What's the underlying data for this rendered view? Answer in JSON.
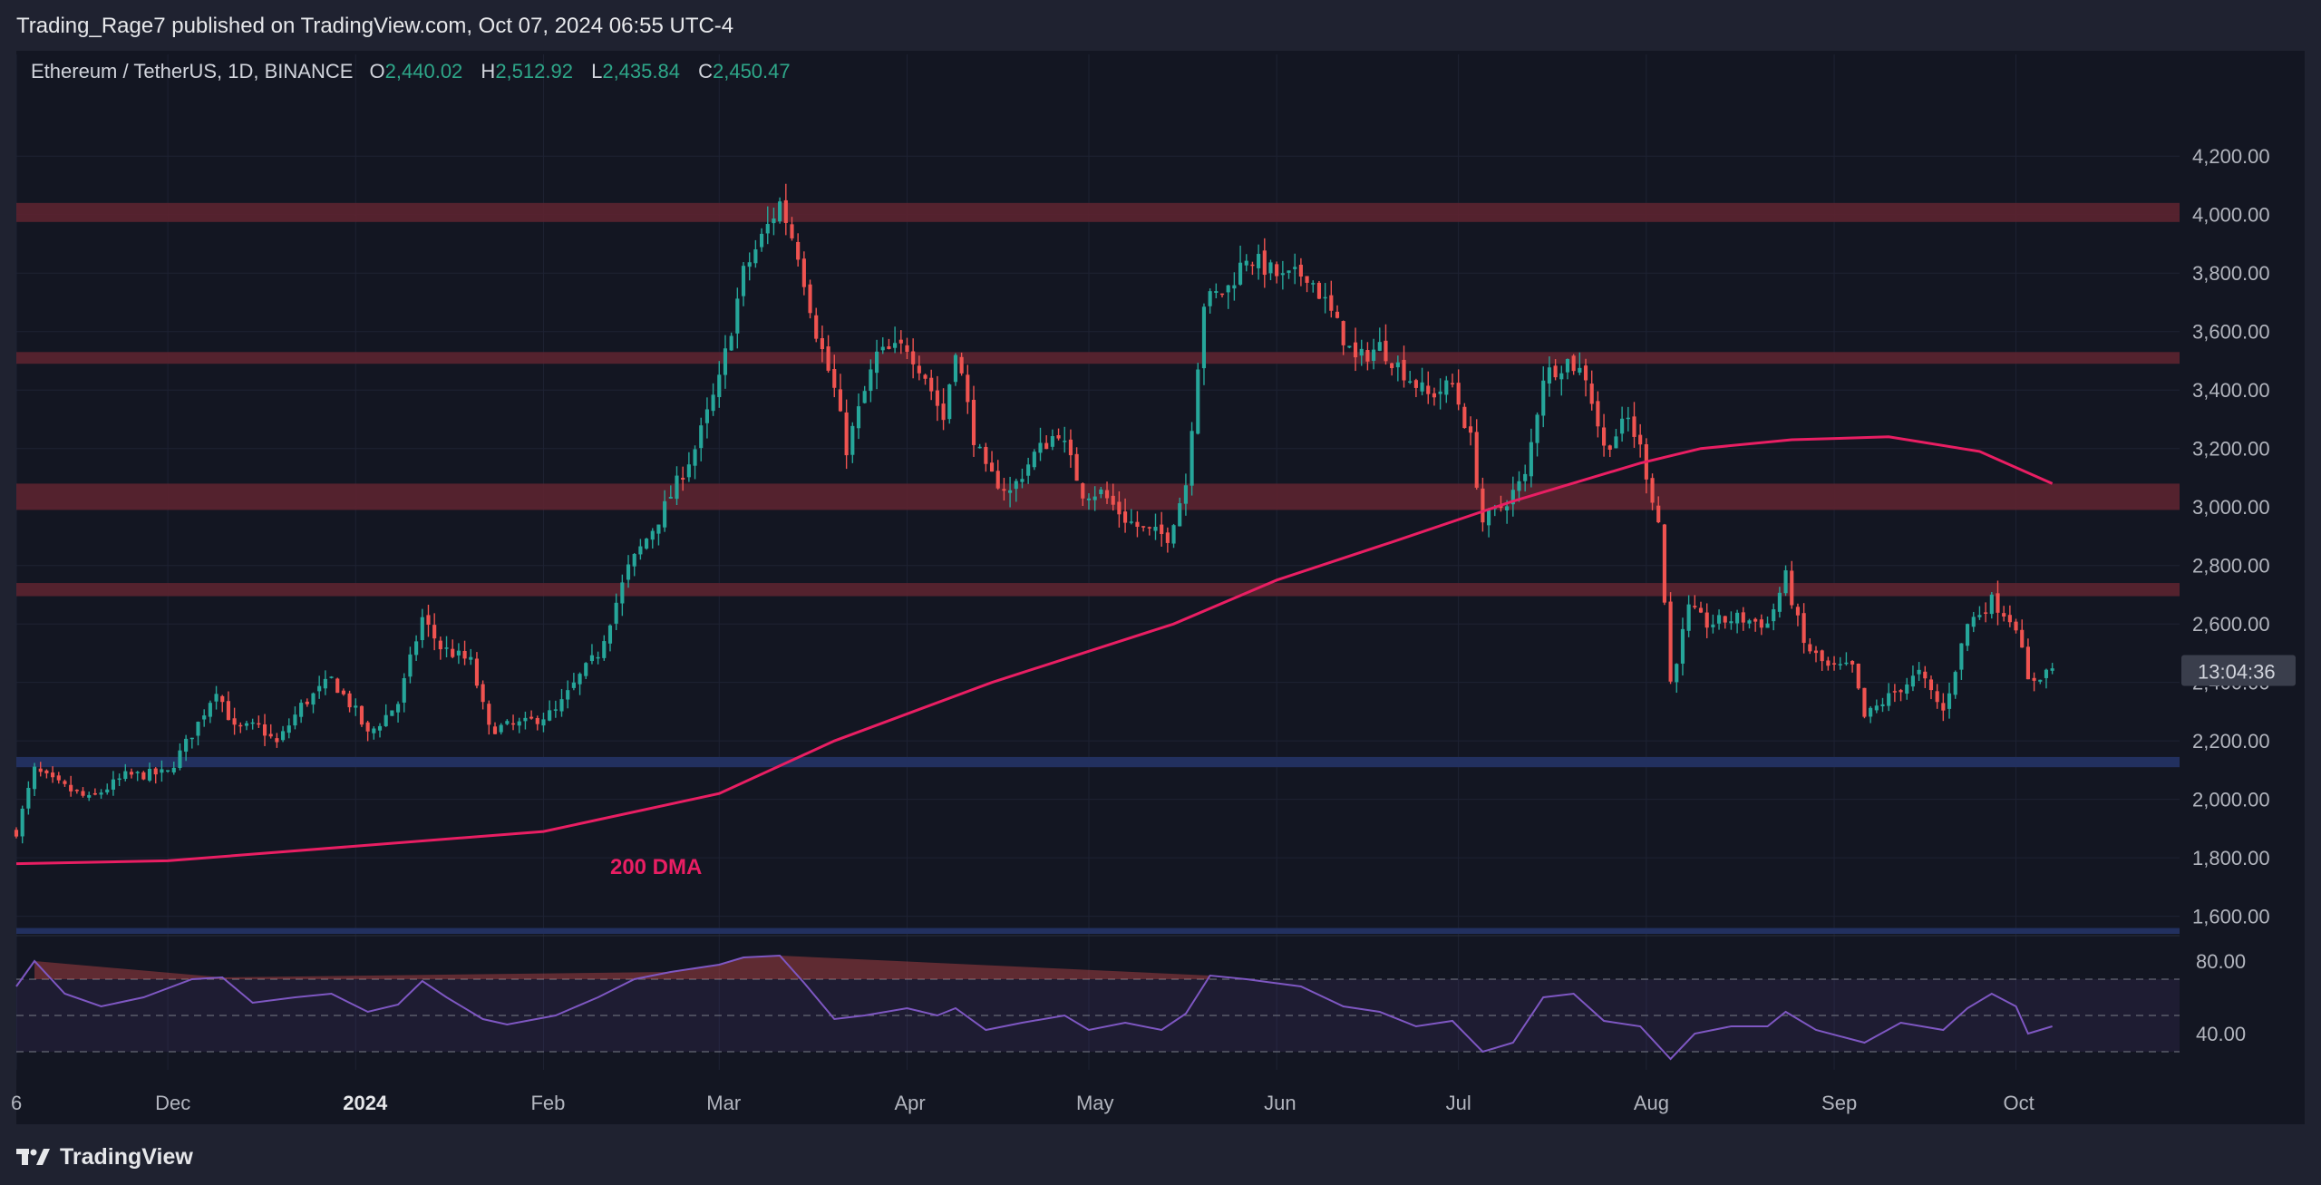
{
  "header": {
    "published": "Trading_Rage7 published on TradingView.com, Oct 07, 2024 06:55 UTC-4"
  },
  "legend": {
    "symbol": "Ethereum / TetherUS, 1D, BINANCE",
    "o_label": "O",
    "o_value": "2,440.02",
    "h_label": "H",
    "h_value": "2,512.92",
    "l_label": "L",
    "l_value": "2,435.84",
    "c_label": "C",
    "c_value": "2,450.47"
  },
  "footer": {
    "brand": "TradingView"
  },
  "colors": {
    "bull": "#26a69a",
    "bear": "#ef5350",
    "ma": "#e91e63",
    "resistance_zone": "#5c2330",
    "support_zone": "#22305f",
    "rsi_line": "#7e57c2"
  },
  "chart_data": {
    "type": "candlestick",
    "price_axis": {
      "ticks": [
        "4,200.00",
        "4,000.00",
        "3,800.00",
        "3,600.00",
        "3,400.00",
        "3,200.00",
        "3,000.00",
        "2,800.00",
        "2,600.00",
        "2,400.00",
        "2,200.00",
        "2,000.00",
        "1,800.00",
        "1,600.00"
      ],
      "range": [
        1540,
        4300
      ],
      "countdown": "13:04:36"
    },
    "time_axis": {
      "ticks": [
        "6",
        "Dec",
        "2024",
        "Feb",
        "Mar",
        "Apr",
        "May",
        "Jun",
        "Jul",
        "Aug",
        "Sep",
        "Oct"
      ],
      "range": [
        "2023-11-06",
        "2024-10-28"
      ]
    },
    "ohlc_last": {
      "o": 2440.02,
      "h": 2512.92,
      "l": 2435.84,
      "c": 2450.47
    },
    "close_path": [
      [
        "2023-11-06",
        1890
      ],
      [
        "2023-11-09",
        2100
      ],
      [
        "2023-11-12",
        2060
      ],
      [
        "2023-11-18",
        2000
      ],
      [
        "2023-11-24",
        2080
      ],
      [
        "2023-12-01",
        2090
      ],
      [
        "2023-12-06",
        2260
      ],
      [
        "2023-12-09",
        2380
      ],
      [
        "2023-12-12",
        2240
      ],
      [
        "2023-12-16",
        2250
      ],
      [
        "2023-12-19",
        2190
      ],
      [
        "2023-12-23",
        2320
      ],
      [
        "2023-12-28",
        2410
      ],
      [
        "2024-01-01",
        2300
      ],
      [
        "2024-01-03",
        2220
      ],
      [
        "2024-01-08",
        2330
      ],
      [
        "2024-01-12",
        2620
      ],
      [
        "2024-01-15",
        2520
      ],
      [
        "2024-01-20",
        2470
      ],
      [
        "2024-01-23",
        2240
      ],
      [
        "2024-01-29",
        2260
      ],
      [
        "2024-02-03",
        2300
      ],
      [
        "2024-02-07",
        2420
      ],
      [
        "2024-02-10",
        2500
      ],
      [
        "2024-02-15",
        2790
      ],
      [
        "2024-02-20",
        2960
      ],
      [
        "2024-02-26",
        3200
      ],
      [
        "2024-03-01",
        3430
      ],
      [
        "2024-03-05",
        3800
      ],
      [
        "2024-03-08",
        3920
      ],
      [
        "2024-03-11",
        4040
      ],
      [
        "2024-03-14",
        3870
      ],
      [
        "2024-03-17",
        3600
      ],
      [
        "2024-03-20",
        3400
      ],
      [
        "2024-03-22",
        3200
      ],
      [
        "2024-03-27",
        3520
      ],
      [
        "2024-04-01",
        3550
      ],
      [
        "2024-04-04",
        3450
      ],
      [
        "2024-04-07",
        3300
      ],
      [
        "2024-04-09",
        3550
      ],
      [
        "2024-04-12",
        3240
      ],
      [
        "2024-04-14",
        3120
      ],
      [
        "2024-04-18",
        3050
      ],
      [
        "2024-04-22",
        3180
      ],
      [
        "2024-04-26",
        3260
      ],
      [
        "2024-04-30",
        3050
      ],
      [
        "2024-05-03",
        3050
      ],
      [
        "2024-05-07",
        2960
      ],
      [
        "2024-05-10",
        2920
      ],
      [
        "2024-05-14",
        2900
      ],
      [
        "2024-05-17",
        3080
      ],
      [
        "2024-05-20",
        3700
      ],
      [
        "2024-05-24",
        3750
      ],
      [
        "2024-05-27",
        3860
      ],
      [
        "2024-06-02",
        3780
      ],
      [
        "2024-06-06",
        3800
      ],
      [
        "2024-06-09",
        3700
      ],
      [
        "2024-06-14",
        3500
      ],
      [
        "2024-06-18",
        3550
      ],
      [
        "2024-06-23",
        3440
      ],
      [
        "2024-06-26",
        3380
      ],
      [
        "2024-06-30",
        3420
      ],
      [
        "2024-07-03",
        3230
      ],
      [
        "2024-07-05",
        2950
      ],
      [
        "2024-07-08",
        3000
      ],
      [
        "2024-07-12",
        3100
      ],
      [
        "2024-07-15",
        3450
      ],
      [
        "2024-07-19",
        3500
      ],
      [
        "2024-07-22",
        3450
      ],
      [
        "2024-07-25",
        3200
      ],
      [
        "2024-07-29",
        3300
      ],
      [
        "2024-07-31",
        3200
      ],
      [
        "2024-08-03",
        2950
      ],
      [
        "2024-08-05",
        2400
      ],
      [
        "2024-08-08",
        2650
      ],
      [
        "2024-08-11",
        2600
      ],
      [
        "2024-08-16",
        2620
      ],
      [
        "2024-08-21",
        2600
      ],
      [
        "2024-08-24",
        2760
      ],
      [
        "2024-08-27",
        2530
      ],
      [
        "2024-08-31",
        2450
      ],
      [
        "2024-09-04",
        2450
      ],
      [
        "2024-09-06",
        2280
      ],
      [
        "2024-09-10",
        2350
      ],
      [
        "2024-09-15",
        2430
      ],
      [
        "2024-09-19",
        2300
      ],
      [
        "2024-09-23",
        2600
      ],
      [
        "2024-09-27",
        2680
      ],
      [
        "2024-10-01",
        2600
      ],
      [
        "2024-10-03",
        2400
      ],
      [
        "2024-10-07",
        2450
      ]
    ],
    "ma_200": {
      "label": "200 DMA",
      "values": [
        [
          "2023-11-06",
          1780
        ],
        [
          "2023-12-01",
          1790
        ],
        [
          "2024-01-01",
          1840
        ],
        [
          "2024-02-01",
          1890
        ],
        [
          "2024-03-01",
          2020
        ],
        [
          "2024-03-20",
          2200
        ],
        [
          "2024-04-15",
          2400
        ],
        [
          "2024-05-15",
          2600
        ],
        [
          "2024-06-01",
          2750
        ],
        [
          "2024-06-20",
          2880
        ],
        [
          "2024-07-10",
          3020
        ],
        [
          "2024-07-31",
          3150
        ],
        [
          "2024-08-10",
          3200
        ],
        [
          "2024-08-25",
          3230
        ],
        [
          "2024-09-10",
          3240
        ],
        [
          "2024-09-25",
          3190
        ],
        [
          "2024-10-07",
          3080
        ]
      ]
    },
    "zones": [
      {
        "kind": "resistance",
        "low": 3975,
        "high": 4040
      },
      {
        "kind": "resistance",
        "low": 3490,
        "high": 3530
      },
      {
        "kind": "resistance",
        "low": 2990,
        "high": 3080
      },
      {
        "kind": "resistance",
        "low": 2695,
        "high": 2740
      },
      {
        "kind": "support",
        "low": 2110,
        "high": 2145
      },
      {
        "kind": "support",
        "low": 1540,
        "high": 1560
      }
    ],
    "rsi": {
      "ticks": [
        "80.00",
        "40.00"
      ],
      "range": [
        20,
        90
      ],
      "bands": [
        30,
        50,
        70
      ],
      "values": [
        [
          "2023-11-06",
          66
        ],
        [
          "2023-11-09",
          80
        ],
        [
          "2023-11-14",
          62
        ],
        [
          "2023-11-20",
          55
        ],
        [
          "2023-11-27",
          60
        ],
        [
          "2023-12-05",
          70
        ],
        [
          "2023-12-10",
          71
        ],
        [
          "2023-12-15",
          57
        ],
        [
          "2023-12-22",
          60
        ],
        [
          "2023-12-28",
          62
        ],
        [
          "2024-01-03",
          52
        ],
        [
          "2024-01-08",
          56
        ],
        [
          "2024-01-12",
          69
        ],
        [
          "2024-01-16",
          60
        ],
        [
          "2024-01-22",
          48
        ],
        [
          "2024-01-26",
          45
        ],
        [
          "2024-02-03",
          50
        ],
        [
          "2024-02-10",
          60
        ],
        [
          "2024-02-16",
          70
        ],
        [
          "2024-02-22",
          74
        ],
        [
          "2024-03-01",
          78
        ],
        [
          "2024-03-05",
          82
        ],
        [
          "2024-03-11",
          83
        ],
        [
          "2024-03-15",
          68
        ],
        [
          "2024-03-20",
          48
        ],
        [
          "2024-03-25",
          50
        ],
        [
          "2024-04-01",
          54
        ],
        [
          "2024-04-06",
          50
        ],
        [
          "2024-04-09",
          54
        ],
        [
          "2024-04-14",
          42
        ],
        [
          "2024-04-20",
          46
        ],
        [
          "2024-04-27",
          50
        ],
        [
          "2024-05-01",
          42
        ],
        [
          "2024-05-07",
          46
        ],
        [
          "2024-05-13",
          42
        ],
        [
          "2024-05-17",
          51
        ],
        [
          "2024-05-21",
          72
        ],
        [
          "2024-05-27",
          70
        ],
        [
          "2024-06-05",
          66
        ],
        [
          "2024-06-12",
          55
        ],
        [
          "2024-06-18",
          52
        ],
        [
          "2024-06-24",
          44
        ],
        [
          "2024-06-30",
          47
        ],
        [
          "2024-07-05",
          30
        ],
        [
          "2024-07-10",
          35
        ],
        [
          "2024-07-15",
          60
        ],
        [
          "2024-07-20",
          62
        ],
        [
          "2024-07-25",
          47
        ],
        [
          "2024-07-31",
          44
        ],
        [
          "2024-08-05",
          26
        ],
        [
          "2024-08-09",
          40
        ],
        [
          "2024-08-15",
          44
        ],
        [
          "2024-08-21",
          44
        ],
        [
          "2024-08-24",
          52
        ],
        [
          "2024-08-29",
          42
        ],
        [
          "2024-09-06",
          35
        ],
        [
          "2024-09-12",
          46
        ],
        [
          "2024-09-19",
          42
        ],
        [
          "2024-09-23",
          54
        ],
        [
          "2024-09-27",
          62
        ],
        [
          "2024-10-01",
          55
        ],
        [
          "2024-10-03",
          40
        ],
        [
          "2024-10-07",
          44
        ]
      ]
    }
  }
}
